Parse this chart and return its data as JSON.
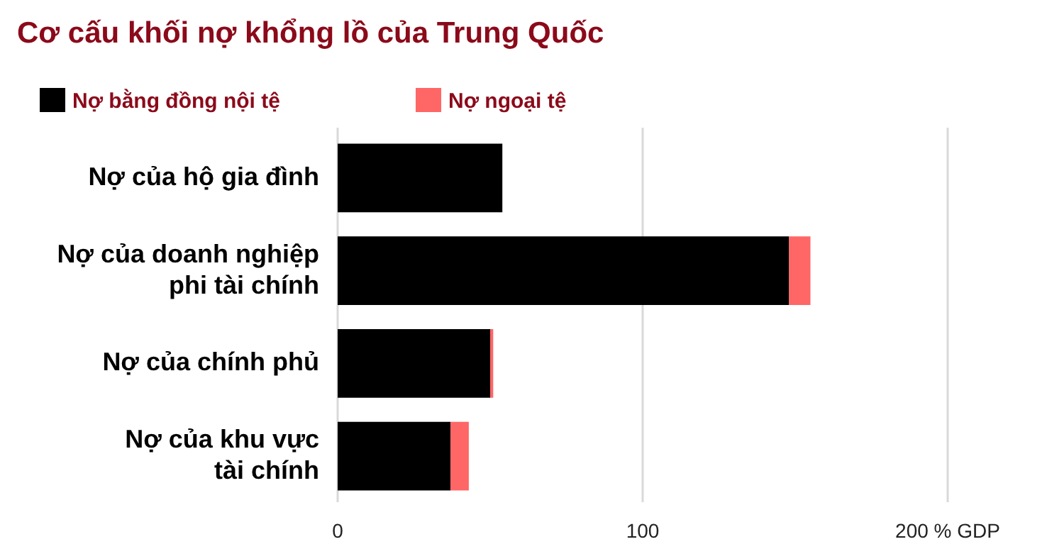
{
  "chart_data": {
    "type": "bar",
    "orientation": "horizontal",
    "stacked": true,
    "title": "Cơ cấu khối nợ khổng lồ của Trung Quốc",
    "categories": [
      "Nợ của hộ gia đình",
      "Nợ của doanh nghiệp\nphi tài chính",
      "Nợ của chính phủ",
      "Nợ của khu vực\ntài chính"
    ],
    "series": [
      {
        "name": "Nợ bằng đồng nội tệ",
        "color": "#000000",
        "values": [
          54,
          148,
          50,
          37
        ]
      },
      {
        "name": "Nợ ngoại tệ",
        "color": "#ff6666",
        "values": [
          0,
          7,
          1,
          6
        ]
      }
    ],
    "xlim": [
      0,
      200
    ],
    "xticks": [
      0,
      100,
      {
        "value": 200,
        "label": "200 % GDP"
      }
    ],
    "grid": "x",
    "legend": "top left"
  }
}
